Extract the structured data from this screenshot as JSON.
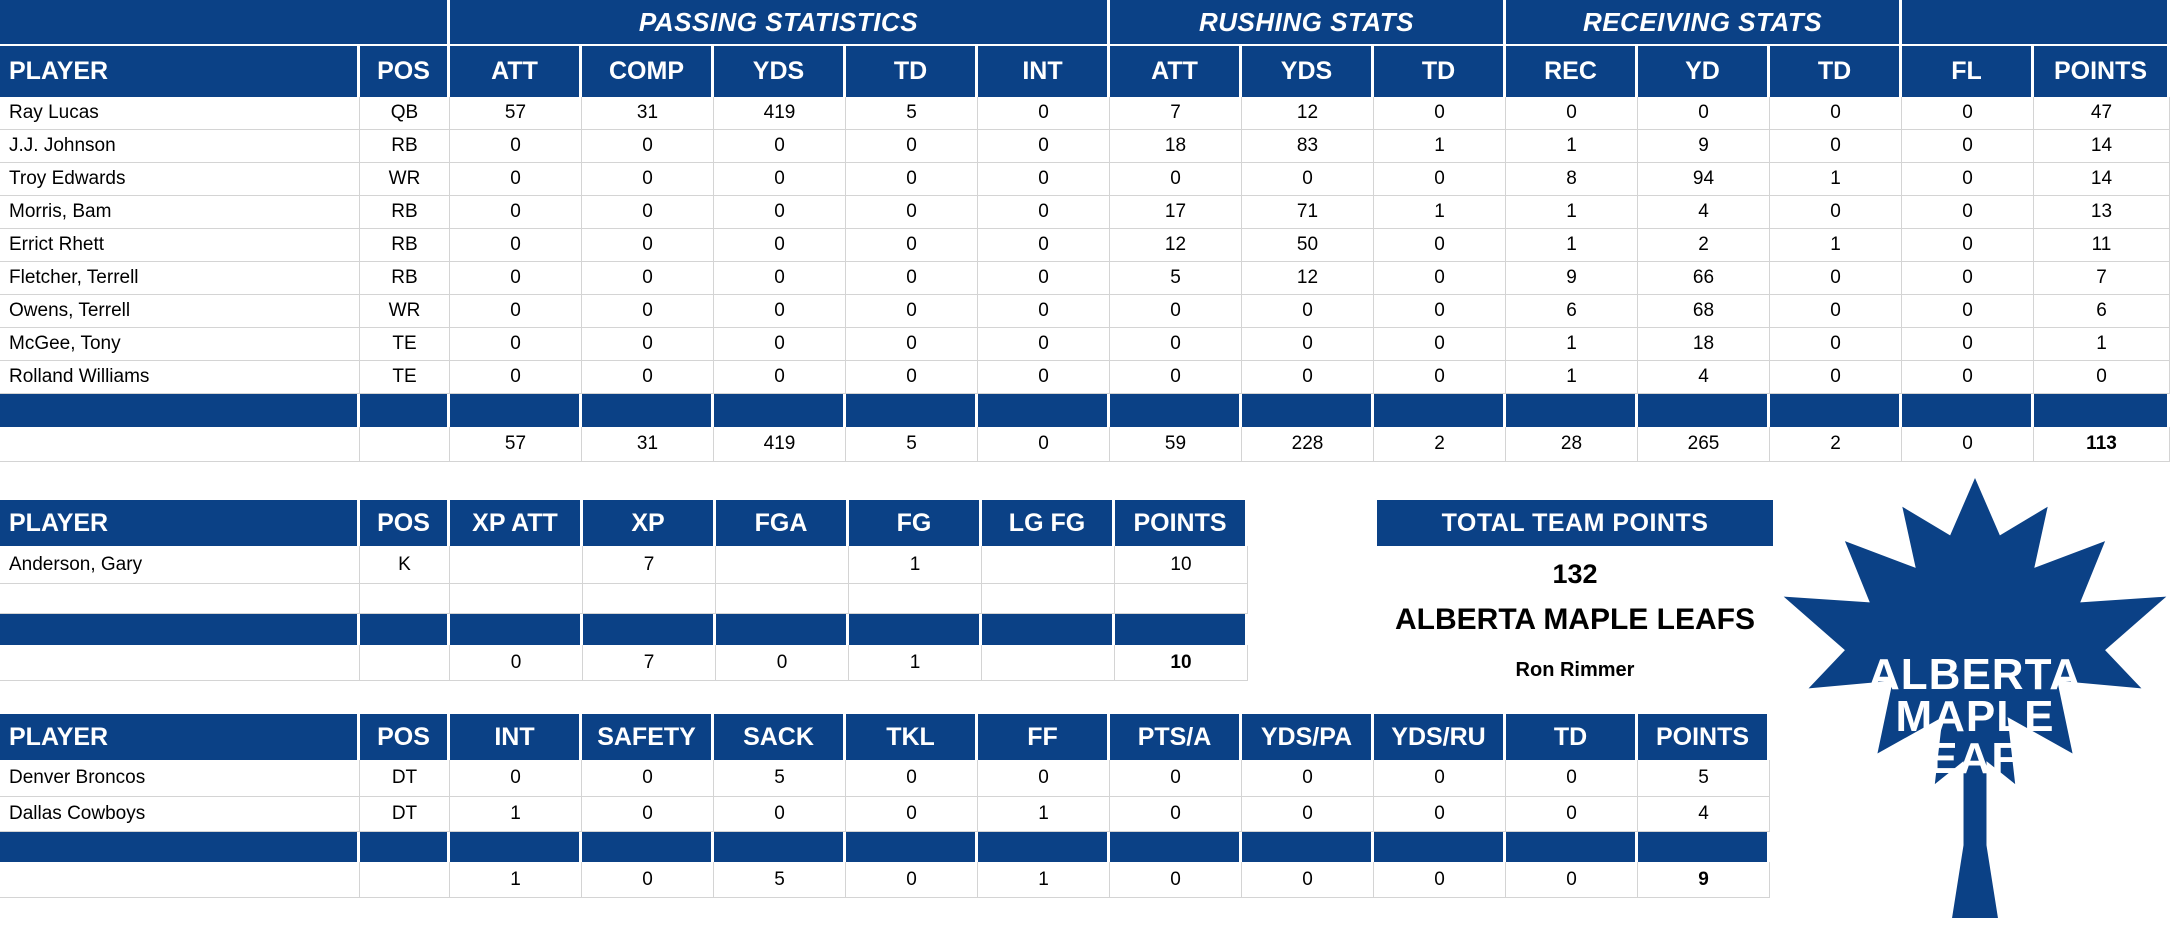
{
  "colors": {
    "navy": "#0B4186",
    "grid": "#D4D4D4",
    "white": "#FFFFFF"
  },
  "offense_table": {
    "group_row": [
      {
        "label": "",
        "span": 2
      },
      {
        "label": "PASSING STATISTICS",
        "span": 5
      },
      {
        "label": "RUSHING STATS",
        "span": 3
      },
      {
        "label": "RECEIVING STATS",
        "span": 3
      },
      {
        "label": "",
        "span": 2
      }
    ],
    "columns": [
      "PLAYER",
      "POS",
      "ATT",
      "COMP",
      "YDS",
      "TD",
      "INT",
      "ATT",
      "YDS",
      "TD",
      "REC",
      "YD",
      "TD",
      "FL",
      "POINTS"
    ],
    "rows": [
      [
        "Ray Lucas",
        "QB",
        "57",
        "31",
        "419",
        "5",
        "0",
        "7",
        "12",
        "0",
        "0",
        "0",
        "0",
        "0",
        "47"
      ],
      [
        "J.J. Johnson",
        "RB",
        "0",
        "0",
        "0",
        "0",
        "0",
        "18",
        "83",
        "1",
        "1",
        "9",
        "0",
        "0",
        "14"
      ],
      [
        "Troy Edwards",
        "WR",
        "0",
        "0",
        "0",
        "0",
        "0",
        "0",
        "0",
        "0",
        "8",
        "94",
        "1",
        "0",
        "14"
      ],
      [
        "Morris, Bam",
        "RB",
        "0",
        "0",
        "0",
        "0",
        "0",
        "17",
        "71",
        "1",
        "1",
        "4",
        "0",
        "0",
        "13"
      ],
      [
        "Errict Rhett",
        "RB",
        "0",
        "0",
        "0",
        "0",
        "0",
        "12",
        "50",
        "0",
        "1",
        "2",
        "1",
        "0",
        "11"
      ],
      [
        "Fletcher, Terrell",
        "RB",
        "0",
        "0",
        "0",
        "0",
        "0",
        "5",
        "12",
        "0",
        "9",
        "66",
        "0",
        "0",
        "7"
      ],
      [
        "Owens, Terrell",
        "WR",
        "0",
        "0",
        "0",
        "0",
        "0",
        "0",
        "0",
        "0",
        "6",
        "68",
        "0",
        "0",
        "6"
      ],
      [
        "McGee, Tony",
        "TE",
        "0",
        "0",
        "0",
        "0",
        "0",
        "0",
        "0",
        "0",
        "1",
        "18",
        "0",
        "0",
        "1"
      ],
      [
        "Rolland Williams",
        "TE",
        "0",
        "0",
        "0",
        "0",
        "0",
        "0",
        "0",
        "0",
        "1",
        "4",
        "0",
        "0",
        "0"
      ]
    ],
    "totals": [
      "",
      "",
      "57",
      "31",
      "419",
      "5",
      "0",
      "59",
      "228",
      "2",
      "28",
      "265",
      "2",
      "0",
      "113"
    ]
  },
  "kicker_table": {
    "columns": [
      "PLAYER",
      "POS",
      "XP ATT",
      "XP",
      "FGA",
      "FG",
      "LG FG",
      "POINTS"
    ],
    "rows": [
      [
        "Anderson, Gary",
        "K",
        "",
        "7",
        "",
        "1",
        "",
        "10"
      ],
      [
        "",
        "",
        "",
        "",
        "",
        "",
        "",
        ""
      ]
    ],
    "totals": [
      "",
      "",
      "0",
      "7",
      "0",
      "1",
      "",
      "10"
    ]
  },
  "defense_table": {
    "columns": [
      "PLAYER",
      "POS",
      "INT",
      "SAFETY",
      "SACK",
      "TKL",
      "FF",
      "PTS/A",
      "YDS/PA",
      "YDS/RU",
      "TD",
      "POINTS"
    ],
    "rows": [
      [
        "Denver Broncos",
        "DT",
        "0",
        "0",
        "5",
        "0",
        "0",
        "0",
        "0",
        "0",
        "0",
        "5"
      ],
      [
        "Dallas Cowboys",
        "DT",
        "1",
        "0",
        "0",
        "0",
        "1",
        "0",
        "0",
        "0",
        "0",
        "4"
      ]
    ],
    "totals": [
      "",
      "",
      "1",
      "0",
      "5",
      "0",
      "1",
      "0",
      "0",
      "0",
      "0",
      "9"
    ]
  },
  "team_summary": {
    "header": "TOTAL TEAM POINTS",
    "points": "132",
    "team_name": "ALBERTA MAPLE LEAFS",
    "owner": "Ron Rimmer"
  },
  "logo": {
    "line1": "ALBERTA",
    "line2": "MAPLE",
    "line3": "LEAFS"
  }
}
